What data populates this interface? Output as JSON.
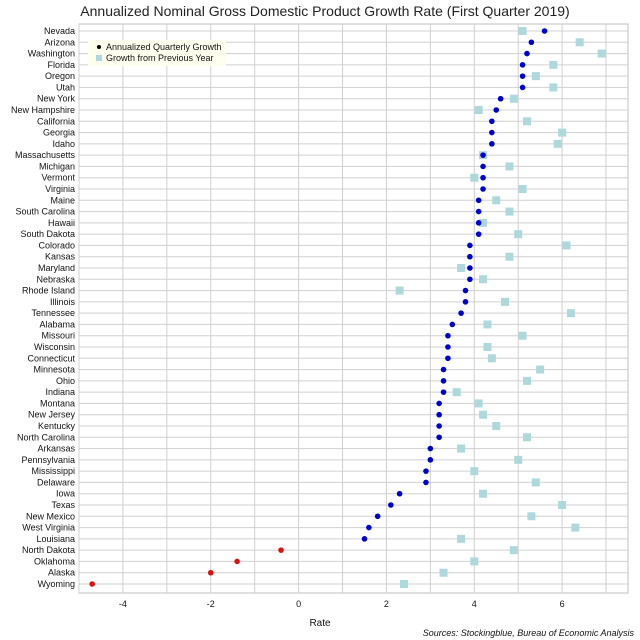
{
  "chart_data": {
    "type": "scatter",
    "title": "Annualized Nominal Gross Domestic Product Growth Rate (First Quarter 2019)",
    "xlabel": "Rate",
    "ylabel": "",
    "xlim": [
      -5,
      7.5
    ],
    "x_ticks": [
      -4,
      -2,
      0,
      2,
      4,
      6
    ],
    "grid": true,
    "legend_position": "top-left",
    "source": "Sources: Stockingblue, Bureau of Economic Analysis",
    "colors": {
      "quarterly_positive": "#0000cc",
      "quarterly_negative": "#dd1111",
      "yoy": "#aed8dc",
      "grid": "#d0d0d0",
      "legend_bg": "#fffff0"
    },
    "categories": [
      "Nevada",
      "Arizona",
      "Washington",
      "Florida",
      "Oregon",
      "Utah",
      "New York",
      "New Hampshire",
      "California",
      "Georgia",
      "Idaho",
      "Massachusetts",
      "Michigan",
      "Vermont",
      "Virginia",
      "Maine",
      "South Carolina",
      "Hawaii",
      "South Dakota",
      "Colorado",
      "Kansas",
      "Maryland",
      "Nebraska",
      "Rhode Island",
      "Illinois",
      "Tennessee",
      "Alabama",
      "Missouri",
      "Wisconsin",
      "Connecticut",
      "Minnesota",
      "Ohio",
      "Indiana",
      "Montana",
      "New Jersey",
      "Kentucky",
      "North Carolina",
      "Arkansas",
      "Pennsylvania",
      "Mississippi",
      "Delaware",
      "Iowa",
      "Texas",
      "New Mexico",
      "West Virginia",
      "Louisiana",
      "North Dakota",
      "Oklahoma",
      "Alaska",
      "Wyoming"
    ],
    "series": [
      {
        "name": "Annualized Quarterly Growth",
        "values": [
          5.6,
          5.3,
          5.2,
          5.1,
          5.1,
          5.1,
          4.6,
          4.5,
          4.4,
          4.4,
          4.4,
          4.2,
          4.2,
          4.2,
          4.2,
          4.1,
          4.1,
          4.1,
          4.1,
          3.9,
          3.9,
          3.9,
          3.9,
          3.8,
          3.8,
          3.7,
          3.5,
          3.4,
          3.4,
          3.4,
          3.3,
          3.3,
          3.3,
          3.2,
          3.2,
          3.2,
          3.2,
          3.0,
          3.0,
          2.9,
          2.9,
          2.3,
          2.1,
          1.8,
          1.6,
          1.5,
          -0.4,
          -1.4,
          -2.0,
          -4.7
        ]
      },
      {
        "name": "Growth from Previous Year",
        "values": [
          5.1,
          6.4,
          6.9,
          5.8,
          5.4,
          5.8,
          4.9,
          4.1,
          5.2,
          6.0,
          5.9,
          4.2,
          4.8,
          4.0,
          5.1,
          4.5,
          4.8,
          4.2,
          5.0,
          6.1,
          4.8,
          3.7,
          4.2,
          2.3,
          4.7,
          6.2,
          4.3,
          5.1,
          4.3,
          4.4,
          5.5,
          5.2,
          3.6,
          4.1,
          4.2,
          4.5,
          5.2,
          3.7,
          5.0,
          4.0,
          5.4,
          4.2,
          6.0,
          5.3,
          6.3,
          3.7,
          4.9,
          4.0,
          3.3,
          2.4
        ]
      }
    ]
  }
}
